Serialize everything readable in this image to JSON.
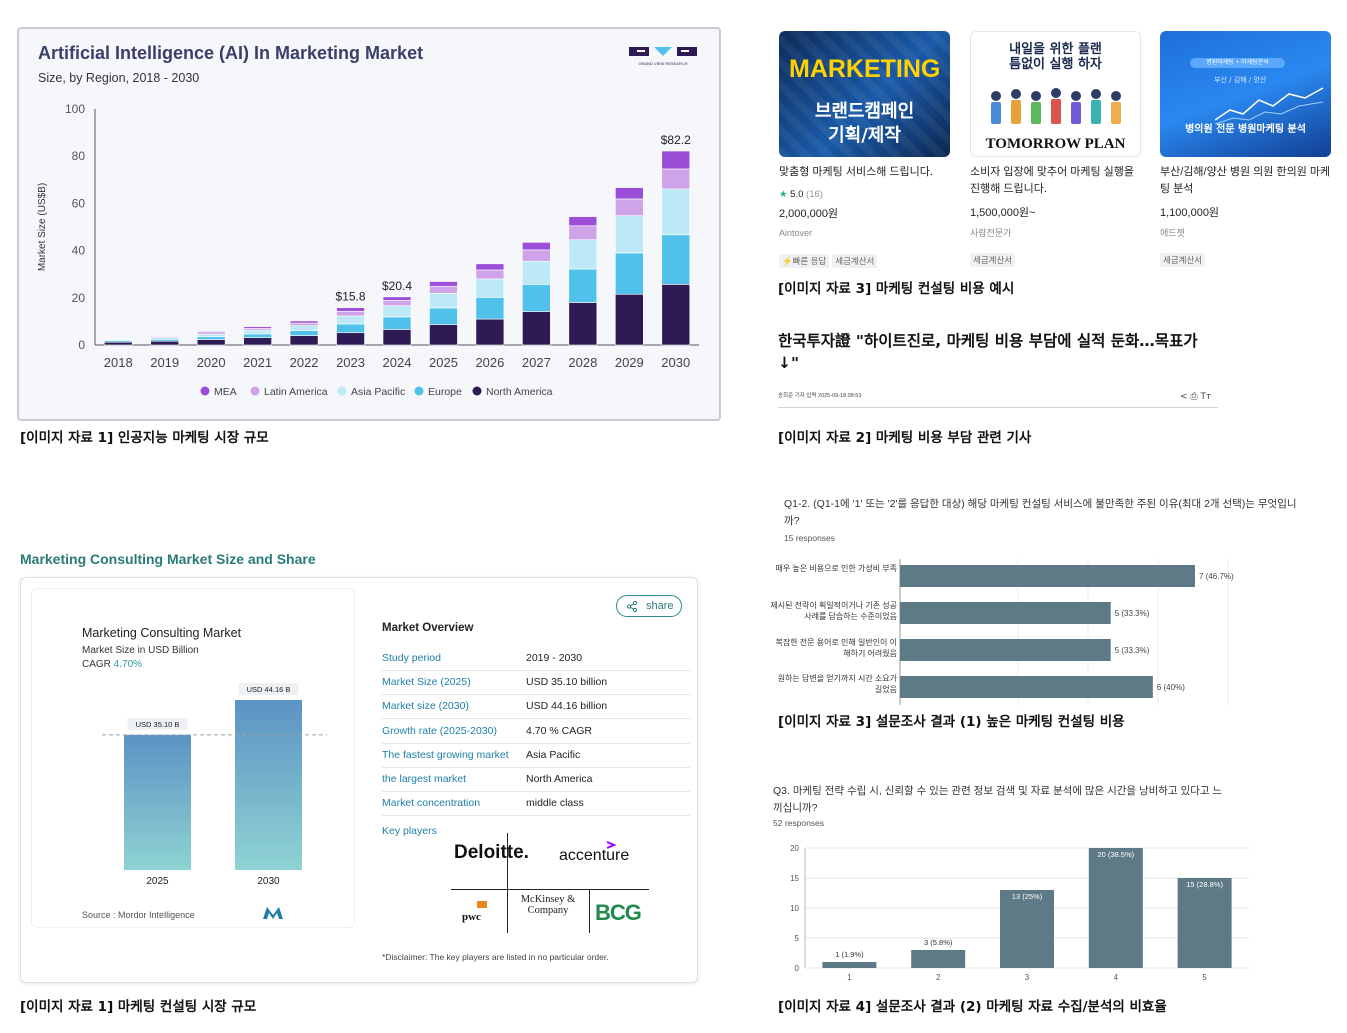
{
  "panel1": {
    "title": "Artificial Intelligence (AI) In Marketing Market",
    "subtitle": "Size, by Region, 2018 - 2030",
    "logo_text": "GRAND VIEW RESEARCH",
    "caption": "[이미지 자료 1] 인공지능 마케팅 시장 규모"
  },
  "panel2": {
    "header": "Marketing Consulting Market Size and Share",
    "share_label": "share",
    "left_title": "Marketing Consulting Market",
    "left_sub": "Market Size in USD Billion",
    "cagr_label": "CAGR",
    "cagr_value": "4.70%",
    "source_label": "Source :",
    "source_value": "Mordor Intelligence",
    "overview_title": "Market Overview",
    "overview_rows": [
      {
        "key": "Study period",
        "value": "2019 - 2030"
      },
      {
        "key": "Market Size (2025)",
        "value": "USD 35.10 billion"
      },
      {
        "key": "Market size (2030)",
        "value": "USD 44.16 billion"
      },
      {
        "key": "Growth rate (2025-2030)",
        "value": "4.70 % CAGR"
      },
      {
        "key": "The fastest growing market",
        "value": "Asia Pacific"
      },
      {
        "key": "the largest market",
        "value": "North America"
      },
      {
        "key": "Market concentration",
        "value": "middle class"
      }
    ],
    "key_players_label": "Key players",
    "players": [
      "Deloitte.",
      "accenture",
      "pwc",
      "McKinsey & Company",
      "BCG"
    ],
    "disclaimer": "*Disclaimer: The key players are listed in no particular order.",
    "caption": "[이미지 자료 1] 마케팅 컨설팅 시장 규모"
  },
  "products": {
    "items": [
      {
        "image_text_1": "MARKETING",
        "image_text_2": "브랜드캠페인",
        "image_text_3": "기획/제작",
        "title": "맞춤형 마케팅 서비스해 드립니다.",
        "rating": "5.0",
        "reviews": "(16)",
        "price": "2,000,000원",
        "seller": "Aintover",
        "tags": [
          "빠른 응답",
          "세금계산서"
        ]
      },
      {
        "image_text_1": "내일을 위한 플랜",
        "image_text_2": "틈없이 실행 하자",
        "image_text_3": "TOMORROW PLAN",
        "title": "소비자 입장에 맞추어 마케팅 실행을 진행해 드립니다.",
        "price": "1,500,000원~",
        "seller": "사람전문가",
        "tags": [
          "세금계산서"
        ]
      },
      {
        "image_text_1": "병원마케팅 • 마케팅분석",
        "image_text_2": "부산 / 김해 / 양산",
        "image_text_3": "병의원 전문 병원마케팅 분석",
        "title": "부산/김해/양산 병원 의원 한의원 마케팅 분석",
        "price": "1,100,000원",
        "seller": "애드젯",
        "tags": [
          "세금계산서"
        ]
      }
    ],
    "caption": "[이미지 자료 3] 마케팅 컨설팅 비용 예시"
  },
  "article": {
    "title": "한국투자證 \"하이트진로, 마케팅 비용 부담에 실적 둔화…목표가 ↓\"",
    "byline": "송희준 기자   입력 2025-09-18 08:53",
    "caption": "[이미지 자료 2] 마케팅 비용 부담 관련 기사"
  },
  "survey1": {
    "question": "Q1-2. (Q1-1에 '1' 또는 '2'를 응답한 대상) 해당 마케팅 컨설팅 서비스에 불만족한 주된 이유(최대 2개 선택)는 무엇입니까?",
    "responses": "15 responses",
    "caption": "[이미지 자료 3] 설문조사 결과 (1) 높은 마케팅 컨설팅 비용"
  },
  "survey2": {
    "question": "Q3. 마케팅 전략 수립 시, 신뢰할 수 있는 관련 정보 검색 및 자료 분석에 많은 시간을 낭비하고 있다고 느끼십니까?",
    "responses": "52 responses",
    "caption": "[이미지 자료 4] 설문조사 결과 (2) 마케팅 자료 수집/분석의 비효율"
  },
  "chart_data": [
    {
      "type": "bar",
      "title": "Artificial Intelligence (AI) In Marketing Market",
      "subtitle": "Size, by Region, 2018 - 2030",
      "ylabel": "Market Size (US$B)",
      "ylim": [
        0,
        100
      ],
      "yticks": [
        0,
        20,
        40,
        60,
        80,
        100
      ],
      "stacked": true,
      "legend": "bottom",
      "categories": [
        "2018",
        "2019",
        "2020",
        "2021",
        "2022",
        "2023",
        "2024",
        "2025",
        "2026",
        "2027",
        "2028",
        "2029",
        "2030"
      ],
      "series": [
        {
          "name": "North America",
          "color": "#2e1a55",
          "values": [
            1.2,
            1.6,
            2.3,
            3.1,
            4.0,
            5.2,
            6.6,
            8.6,
            11.0,
            14.2,
            18.0,
            21.5,
            25.7
          ]
        },
        {
          "name": "Europe",
          "color": "#4fc1ea",
          "values": [
            0.6,
            0.8,
            1.2,
            1.6,
            2.1,
            3.7,
            5.3,
            7.1,
            9.2,
            11.5,
            14.2,
            17.5,
            21.0
          ]
        },
        {
          "name": "Asia Pacific",
          "color": "#bde9f7",
          "values": [
            0.5,
            0.7,
            1.1,
            1.6,
            2.1,
            3.4,
            4.7,
            6.2,
            7.8,
            9.8,
            12.4,
            15.8,
            19.4
          ]
        },
        {
          "name": "Latin America",
          "color": "#cfa3ea",
          "values": [
            0.3,
            0.4,
            0.6,
            0.8,
            1.1,
            2.0,
            2.3,
            3.0,
            3.8,
            4.8,
            5.9,
            7.1,
            8.5
          ]
        },
        {
          "name": "MEA",
          "color": "#9b4fd9",
          "values": [
            0.2,
            0.3,
            0.5,
            0.7,
            0.9,
            1.5,
            1.5,
            2.0,
            2.6,
            3.2,
            3.9,
            4.8,
            7.6
          ]
        }
      ],
      "data_labels": [
        {
          "category": "2023",
          "text": "$15.8"
        },
        {
          "category": "2024",
          "text": "$20.4"
        },
        {
          "category": "2030",
          "text": "$82.2"
        }
      ]
    },
    {
      "type": "bar",
      "title": "Marketing Consulting Market",
      "subtitle": "Market Size in USD Billion",
      "categories": [
        "2025",
        "2030"
      ],
      "values": [
        35.1,
        44.16
      ],
      "data_labels": [
        "USD 35.10 B",
        "USD 44.16 B"
      ]
    },
    {
      "type": "bar",
      "orientation": "horizontal",
      "categories": [
        "매우 높은 비용으로 인한 가성비 부족",
        "제시된 전략이 획일적이거나 기존 성공 사례를 답습하는 수준이었음",
        "복잡한 전문 용어로 인해 일반인이 이해하기 어려웠음",
        "원하는 답변을 얻기까지 시간 소요가 길었음"
      ],
      "values": [
        7,
        5,
        5,
        6
      ],
      "data_labels": [
        "7 (46.7%)",
        "5 (33.3%)",
        "5 (33.3%)",
        "6 (40%)"
      ],
      "color": "#5e7a87"
    },
    {
      "type": "bar",
      "categories": [
        "1",
        "2",
        "3",
        "4",
        "5"
      ],
      "values": [
        1,
        3,
        13,
        20,
        15
      ],
      "data_labels": [
        "1 (1.9%)",
        "3 (5.8%)",
        "13 (25%)",
        "20 (38.5%)",
        "15 (28.8%)"
      ],
      "ylim": [
        0,
        20
      ],
      "yticks": [
        0,
        5,
        10,
        15,
        20
      ],
      "color": "#5e7a87"
    }
  ]
}
